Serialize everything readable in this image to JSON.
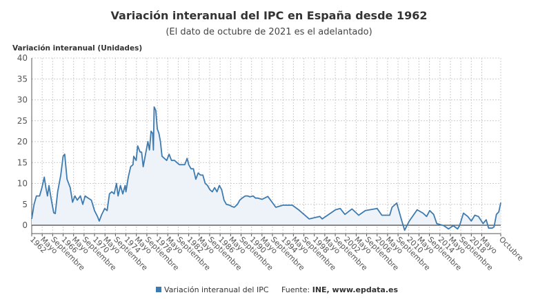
{
  "chart_data": {
    "type": "area",
    "title": "Variación interanual del IPC en España desde 1962",
    "subtitle": "(El dato de octubre de 2021 es el adelantado)",
    "ylabel": "Variación interanual (Unidades)",
    "xlabel": "",
    "ylim": [
      -2,
      40
    ],
    "yticks": [
      0,
      5,
      10,
      15,
      20,
      25,
      30,
      35,
      40
    ],
    "xlim": [
      1962.0,
      2021.75
    ],
    "grid": true,
    "legend_position": "bottom",
    "xtick_labels": [
      "1962",
      "Mayo",
      "Septiembre",
      "1966",
      "Mayo",
      "Septiembre",
      "1970",
      "Mayo",
      "Septiembre",
      "1974",
      "Mayo",
      "Septiembre",
      "1978",
      "Mayo",
      "Septiembre",
      "1982",
      "Mayo",
      "Septiembre",
      "1986",
      "Mayo",
      "Septiembre",
      "1990",
      "Mayo",
      "Septiembre",
      "1994",
      "Mayo",
      "Septiembre",
      "1998",
      "Mayo",
      "Septiembre",
      "2002",
      "Mayo",
      "Septiembre",
      "2006",
      "Mayo",
      "Septiembre",
      "2010",
      "Mayo",
      "Septiembre",
      "2014",
      "Mayo",
      "Septiembre",
      "2018",
      "Mayo",
      "Octubre"
    ],
    "series": [
      {
        "name": "Variación interanual del IPC",
        "color": "#3d7ab0",
        "fill": "#eef3f9",
        "points": [
          [
            1962.0,
            1.5
          ],
          [
            1962.3,
            5
          ],
          [
            1962.6,
            7
          ],
          [
            1963.0,
            7
          ],
          [
            1963.3,
            9
          ],
          [
            1963.6,
            11.5
          ],
          [
            1963.8,
            9
          ],
          [
            1964.0,
            7
          ],
          [
            1964.2,
            9.5
          ],
          [
            1964.5,
            6
          ],
          [
            1964.8,
            3
          ],
          [
            1965.0,
            2.8
          ],
          [
            1965.3,
            8
          ],
          [
            1965.7,
            12
          ],
          [
            1966.0,
            16.5
          ],
          [
            1966.2,
            17
          ],
          [
            1966.5,
            11
          ],
          [
            1966.9,
            9
          ],
          [
            1967.2,
            5.5
          ],
          [
            1967.5,
            7
          ],
          [
            1967.8,
            6
          ],
          [
            1968.2,
            7
          ],
          [
            1968.5,
            5
          ],
          [
            1968.8,
            7
          ],
          [
            1969.2,
            6.5
          ],
          [
            1969.6,
            6
          ],
          [
            1970.0,
            3.5
          ],
          [
            1970.4,
            2
          ],
          [
            1970.6,
            1
          ],
          [
            1970.9,
            2.5
          ],
          [
            1971.3,
            4
          ],
          [
            1971.6,
            3.5
          ],
          [
            1971.9,
            7.5
          ],
          [
            1972.2,
            8
          ],
          [
            1972.5,
            7.5
          ],
          [
            1972.8,
            10
          ],
          [
            1973.0,
            7
          ],
          [
            1973.3,
            9.5
          ],
          [
            1973.6,
            7.5
          ],
          [
            1973.9,
            9.5
          ],
          [
            1974.0,
            8
          ],
          [
            1974.3,
            11.5
          ],
          [
            1974.6,
            14
          ],
          [
            1974.9,
            14.5
          ],
          [
            1975.0,
            16.5
          ],
          [
            1975.3,
            15.5
          ],
          [
            1975.5,
            19
          ],
          [
            1975.8,
            17.5
          ],
          [
            1976.0,
            17.5
          ],
          [
            1976.2,
            14
          ],
          [
            1976.5,
            17
          ],
          [
            1976.8,
            20
          ],
          [
            1977.0,
            18
          ],
          [
            1977.2,
            22.5
          ],
          [
            1977.4,
            22
          ],
          [
            1977.5,
            18
          ],
          [
            1977.6,
            28.3
          ],
          [
            1977.8,
            27.5
          ],
          [
            1978.0,
            23
          ],
          [
            1978.2,
            22
          ],
          [
            1978.4,
            20
          ],
          [
            1978.6,
            16.5
          ],
          [
            1978.9,
            16
          ],
          [
            1979.2,
            15.5
          ],
          [
            1979.5,
            17
          ],
          [
            1979.8,
            15.5
          ],
          [
            1980.2,
            15.5
          ],
          [
            1980.5,
            15
          ],
          [
            1980.8,
            14.5
          ],
          [
            1981.2,
            14.5
          ],
          [
            1981.5,
            14.5
          ],
          [
            1981.8,
            16
          ],
          [
            1982.0,
            14.5
          ],
          [
            1982.3,
            13.5
          ],
          [
            1982.6,
            13.5
          ],
          [
            1982.9,
            11
          ],
          [
            1983.2,
            12.5
          ],
          [
            1983.5,
            12
          ],
          [
            1983.8,
            12
          ],
          [
            1984.1,
            10
          ],
          [
            1984.4,
            9.5
          ],
          [
            1984.7,
            8.5
          ],
          [
            1985.0,
            8
          ],
          [
            1985.3,
            9
          ],
          [
            1985.6,
            8
          ],
          [
            1985.9,
            9.5
          ],
          [
            1986.2,
            8.5
          ],
          [
            1986.5,
            6
          ],
          [
            1986.8,
            5
          ],
          [
            1987.2,
            4.8
          ],
          [
            1987.5,
            4.5
          ],
          [
            1987.8,
            4.3
          ],
          [
            1988.2,
            5
          ],
          [
            1988.5,
            6
          ],
          [
            1988.8,
            6.5
          ],
          [
            1989.2,
            7
          ],
          [
            1989.5,
            7
          ],
          [
            1989.8,
            6.8
          ],
          [
            1990.2,
            7
          ],
          [
            1990.5,
            6.5
          ],
          [
            1990.8,
            6.5
          ],
          [
            1991.35,
            6.2
          ],
          [
            1992.08,
            6.9
          ],
          [
            1993.1,
            4.3
          ],
          [
            1994.0,
            4.8
          ],
          [
            1995.2,
            4.8
          ],
          [
            1996.0,
            3.7
          ],
          [
            1997.35,
            1.5
          ],
          [
            1998.7,
            2.1
          ],
          [
            1999.0,
            1.5
          ],
          [
            2000.7,
            3.7
          ],
          [
            2001.3,
            4.0
          ],
          [
            2001.9,
            2.6
          ],
          [
            2002.8,
            3.9
          ],
          [
            2003.65,
            2.4
          ],
          [
            2004.5,
            3.5
          ],
          [
            2006.0,
            4.0
          ],
          [
            2006.6,
            2.4
          ],
          [
            2007.6,
            2.4
          ],
          [
            2007.9,
            4.3
          ],
          [
            2008.5,
            5.3
          ],
          [
            2009.07,
            1.5
          ],
          [
            2009.5,
            -1.2
          ],
          [
            2010.1,
            1.0
          ],
          [
            2011.1,
            3.7
          ],
          [
            2011.85,
            2.9
          ],
          [
            2012.3,
            2.1
          ],
          [
            2012.7,
            3.5
          ],
          [
            2013.2,
            2.6
          ],
          [
            2013.6,
            0.4
          ],
          [
            2014.5,
            -0.1
          ],
          [
            2015.1,
            -0.9
          ],
          [
            2015.7,
            -0.1
          ],
          [
            2016.25,
            -0.9
          ],
          [
            2016.5,
            -0.1
          ],
          [
            2017.0,
            2.9
          ],
          [
            2017.55,
            2.1
          ],
          [
            2018.0,
            1.0
          ],
          [
            2018.45,
            2.4
          ],
          [
            2018.9,
            2.1
          ],
          [
            2019.5,
            0.4
          ],
          [
            2019.9,
            1.3
          ],
          [
            2020.2,
            -0.7
          ],
          [
            2020.65,
            -0.7
          ],
          [
            2020.9,
            -0.4
          ],
          [
            2021.2,
            2.6
          ],
          [
            2021.5,
            3.2
          ],
          [
            2021.75,
            5.4
          ]
        ]
      }
    ],
    "source": {
      "label": "Fuente:",
      "value": "INE, www.epdata.es"
    }
  }
}
